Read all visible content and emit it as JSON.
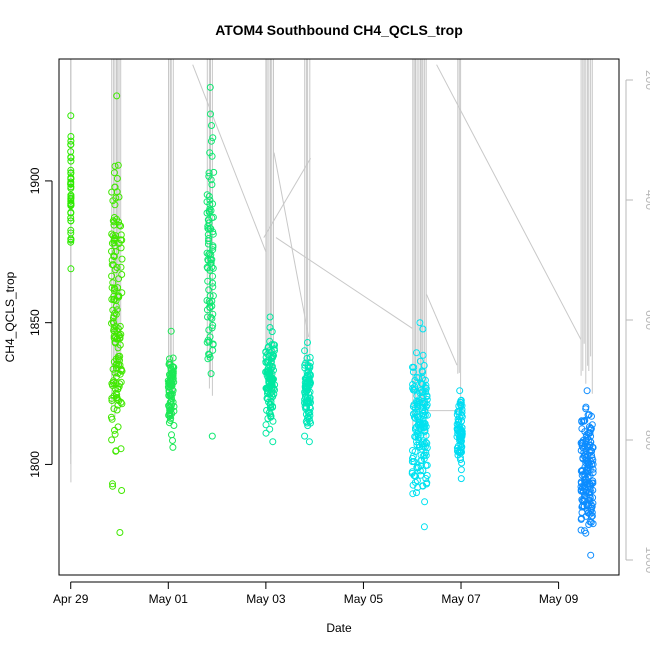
{
  "chart_data": {
    "type": "scatter",
    "title": "ATOM4 Southbound CH4_QCLS_trop",
    "xlabel": "Date",
    "ylabel": "CH4_QCLS_trop",
    "x_tick_labels": [
      "Apr 29",
      "May 01",
      "May 03",
      "May 05",
      "May 07",
      "May 09"
    ],
    "x_tick_dates": [
      "2018-04-29",
      "2018-05-01",
      "2018-05-03",
      "2018-05-05",
      "2018-05-07",
      "2018-05-09"
    ],
    "y_ticks": [
      1800,
      1850,
      1900
    ],
    "ylim": [
      1761,
      1943
    ],
    "xlim": [
      "2018-04-28T18:14",
      "2018-05-10T05:43"
    ],
    "y2_ticks": [
      200,
      400,
      600,
      800,
      1000
    ],
    "y2lim": [
      1025,
      165
    ],
    "y2_reversed": true,
    "grid": false,
    "color_gradient": [
      "#2eea00",
      "#00e8c4",
      "#00dfff",
      "#0c8cff"
    ],
    "profile_line_color": "#c8c8c8",
    "flight_segments": [
      {
        "start": "2018-04-29T00:00",
        "end": "2018-04-29T00:05",
        "ch4_min": 1869,
        "ch4_max": 1923,
        "count": 40,
        "trough_pressure": 810,
        "color": "#2eea00"
      },
      {
        "start": "2018-04-29T20:00",
        "end": "2018-04-30T01:15",
        "ch4_min": 1776,
        "ch4_max": 1930,
        "count": 150,
        "trough_pressure": 700,
        "color": "#41e800"
      },
      {
        "start": "2018-05-01T00:00",
        "end": "2018-05-01T02:50",
        "ch4_min": 1806,
        "ch4_max": 1847,
        "count": 85,
        "trough_pressure": 720,
        "color": "#1ce855"
      },
      {
        "start": "2018-05-01T19:00",
        "end": "2018-05-01T22:20",
        "ch4_min": 1810,
        "ch4_max": 1933,
        "count": 90,
        "trough_pressure": 690,
        "color": "#10e872"
      },
      {
        "start": "2018-05-02T23:50",
        "end": "2018-05-03T04:20",
        "ch4_min": 1808,
        "ch4_max": 1852,
        "count": 110,
        "trough_pressure": 690,
        "color": "#00e8a0"
      },
      {
        "start": "2018-05-03T19:00",
        "end": "2018-05-03T22:00",
        "ch4_min": 1808,
        "ch4_max": 1843,
        "count": 90,
        "trough_pressure": 690,
        "color": "#00e8b8"
      },
      {
        "start": "2018-05-06T00:00",
        "end": "2018-05-06T07:30",
        "ch4_min": 1778,
        "ch4_max": 1850,
        "count": 160,
        "trough_pressure": 760,
        "color": "#00e2f0"
      },
      {
        "start": "2018-05-06T22:00",
        "end": "2018-05-07T00:40",
        "ch4_min": 1795,
        "ch4_max": 1826,
        "count": 80,
        "trough_pressure": 720,
        "color": "#00dcf2"
      },
      {
        "start": "2018-05-09T11:00",
        "end": "2018-05-09T17:00",
        "ch4_min": 1768,
        "ch4_max": 1826,
        "count": 170,
        "trough_pressure": 660,
        "color": "#0c8cff"
      }
    ],
    "transit_lines": [
      {
        "from": [
          "2018-05-01T12:00",
          1941
        ],
        "to": [
          "2018-05-03T00:00",
          1875
        ]
      },
      {
        "from": [
          "2018-05-03T04:00",
          1910
        ],
        "to": [
          "2018-05-03T21:00",
          1845
        ]
      },
      {
        "from": [
          "2018-05-02T23:00",
          1880
        ],
        "to": [
          "2018-05-03T22:00",
          1908
        ]
      },
      {
        "from": [
          "2018-05-03T05:00",
          1880
        ],
        "to": [
          "2018-05-06T00:00",
          1848
        ]
      },
      {
        "from": [
          "2018-05-06T12:00",
          1941
        ],
        "to": [
          "2018-05-09T11:00",
          1844
        ]
      },
      {
        "from": [
          "2018-05-06T07:00",
          1860
        ],
        "to": [
          "2018-05-06T22:00",
          1835
        ]
      },
      {
        "from": [
          "2018-05-06T06:00",
          1819
        ],
        "to": [
          "2018-05-07T00:00",
          1819
        ]
      }
    ]
  }
}
